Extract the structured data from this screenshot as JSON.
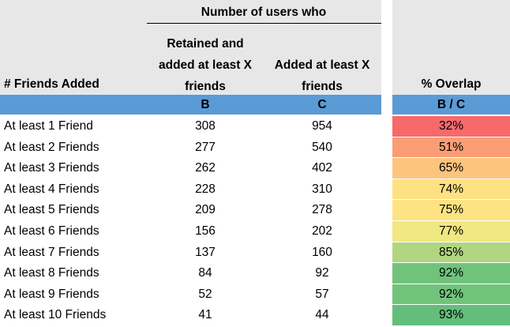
{
  "header": {
    "group_title": "Number of users who",
    "col_a_label": "# Friends Added",
    "col_b_lines": [
      "Retained and",
      "added at least X",
      "friends"
    ],
    "col_c_lines": [
      "Added at least X",
      "friends"
    ],
    "col_d_label": "% Overlap"
  },
  "subheader": {
    "b": "B",
    "c": "C",
    "d": "B / C"
  },
  "rows": [
    {
      "label": "At least 1 Friend",
      "b": "308",
      "c": "954",
      "pct": "32%",
      "color": "#f8696b"
    },
    {
      "label": "At least 2 Friends",
      "b": "277",
      "c": "540",
      "pct": "51%",
      "color": "#fa9d75"
    },
    {
      "label": "At least 3 Friends",
      "b": "262",
      "c": "402",
      "pct": "65%",
      "color": "#fdc47d"
    },
    {
      "label": "At least 4 Friends",
      "b": "228",
      "c": "310",
      "pct": "74%",
      "color": "#fee182"
    },
    {
      "label": "At least 5 Friends",
      "b": "209",
      "c": "278",
      "pct": "75%",
      "color": "#fee382"
    },
    {
      "label": "At least 6 Friends",
      "b": "156",
      "c": "202",
      "pct": "77%",
      "color": "#f1e783"
    },
    {
      "label": "At least 7 Friends",
      "b": "137",
      "c": "160",
      "pct": "85%",
      "color": "#b1d580"
    },
    {
      "label": "At least 8 Friends",
      "b": "84",
      "c": "92",
      "pct": "92%",
      "color": "#71c37c"
    },
    {
      "label": "At least 9 Friends",
      "b": "52",
      "c": "57",
      "pct": "92%",
      "color": "#71c37c"
    },
    {
      "label": "At least 10 Friends",
      "b": "41",
      "c": "44",
      "pct": "93%",
      "color": "#63be7b"
    }
  ]
}
